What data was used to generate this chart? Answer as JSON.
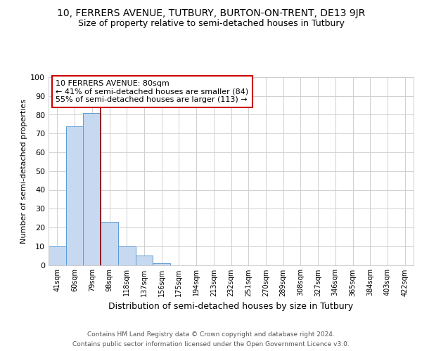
{
  "title1": "10, FERRERS AVENUE, TUTBURY, BURTON-ON-TRENT, DE13 9JR",
  "title2": "Size of property relative to semi-detached houses in Tutbury",
  "xlabel": "Distribution of semi-detached houses by size in Tutbury",
  "ylabel": "Number of semi-detached properties",
  "footer1": "Contains HM Land Registry data © Crown copyright and database right 2024.",
  "footer2": "Contains public sector information licensed under the Open Government Licence v3.0.",
  "bin_labels": [
    "41sqm",
    "60sqm",
    "79sqm",
    "98sqm",
    "118sqm",
    "137sqm",
    "156sqm",
    "175sqm",
    "194sqm",
    "213sqm",
    "232sqm",
    "251sqm",
    "270sqm",
    "289sqm",
    "308sqm",
    "327sqm",
    "346sqm",
    "365sqm",
    "384sqm",
    "403sqm",
    "422sqm"
  ],
  "bar_values": [
    10,
    74,
    81,
    23,
    10,
    5,
    1,
    0,
    0,
    0,
    0,
    0,
    0,
    0,
    0,
    0,
    0,
    0,
    0,
    0,
    0
  ],
  "bar_color": "#c6d9f0",
  "bar_edge_color": "#5b9bd5",
  "property_line_color": "#8B0000",
  "ylim": [
    0,
    100
  ],
  "yticks": [
    0,
    10,
    20,
    30,
    40,
    50,
    60,
    70,
    80,
    90,
    100
  ],
  "annotation_box_text": "10 FERRERS AVENUE: 80sqm\n← 41% of semi-detached houses are smaller (84)\n55% of semi-detached houses are larger (113) →",
  "annotation_box_color": "#ffffff",
  "annotation_box_edge_color": "#cc0000",
  "grid_color": "#d0d0d0",
  "background_color": "#ffffff",
  "title1_fontsize": 10,
  "title2_fontsize": 9,
  "ylabel_fontsize": 8,
  "xlabel_fontsize": 9,
  "footer_fontsize": 6.5,
  "annotation_fontsize": 8
}
